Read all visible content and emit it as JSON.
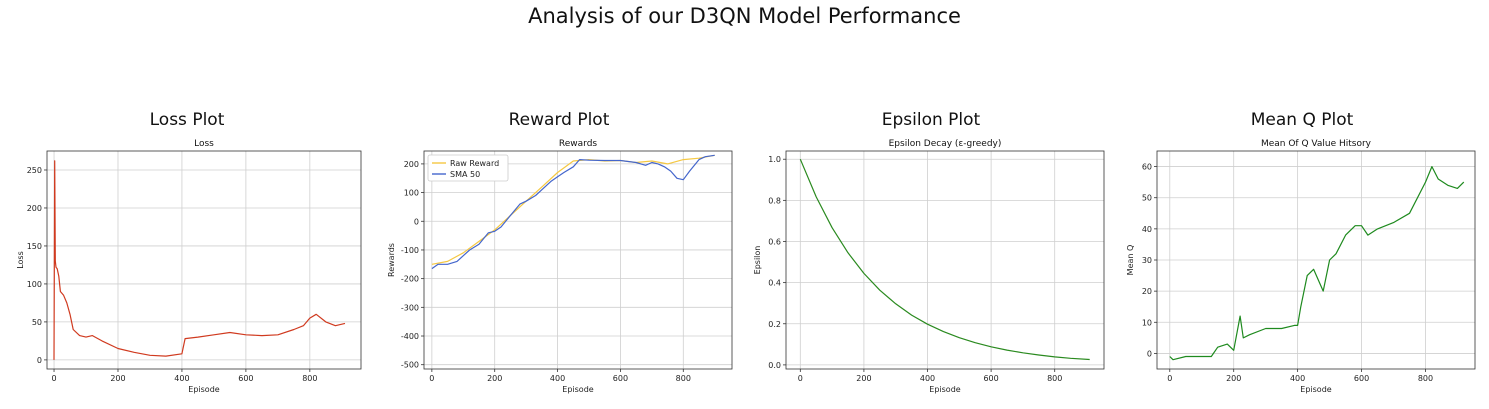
{
  "suptitle": "Analysis of our D3QN Model Performance",
  "panels": [
    {
      "heading": "Loss Plot"
    },
    {
      "heading": "Reward Plot"
    },
    {
      "heading": "Epsilon Plot"
    },
    {
      "heading": "Mean Q Plot"
    }
  ],
  "chart_data": [
    {
      "type": "line",
      "title": "Loss",
      "xlabel": "Episode",
      "ylabel": "Loss",
      "xlim": [
        -22,
        960
      ],
      "ylim": [
        -12,
        275
      ],
      "xticks": [
        0,
        200,
        400,
        600,
        800
      ],
      "yticks": [
        0,
        50,
        100,
        150,
        200,
        250
      ],
      "grid": true,
      "color": "#d03a1f",
      "series": [
        {
          "x": [
            0,
            2,
            4,
            6,
            10,
            15,
            20,
            30,
            40,
            50,
            60,
            80,
            100,
            120,
            150,
            200,
            250,
            300,
            350,
            400,
            410,
            450,
            500,
            550,
            600,
            650,
            700,
            750,
            780,
            800,
            820,
            850,
            880,
            910
          ],
          "y": [
            0,
            262,
            130,
            122,
            120,
            110,
            90,
            85,
            75,
            60,
            40,
            32,
            30,
            32,
            25,
            15,
            10,
            6,
            5,
            8,
            28,
            30,
            33,
            36,
            33,
            32,
            33,
            40,
            45,
            55,
            60,
            50,
            45,
            48
          ]
        }
      ]
    },
    {
      "type": "line",
      "title": "Rewards",
      "xlabel": "Episode",
      "ylabel": "Rewards",
      "xlim": [
        -25,
        955
      ],
      "ylim": [
        -515,
        245
      ],
      "xticks": [
        0,
        200,
        400,
        600,
        800
      ],
      "yticks": [
        -500,
        -400,
        -300,
        -200,
        -100,
        0,
        100,
        200
      ],
      "grid": true,
      "legend": "top-left",
      "series": [
        {
          "name": "Raw Reward",
          "color": "#f5c842",
          "x": [
            0,
            50,
            100,
            150,
            200,
            250,
            300,
            350,
            400,
            450,
            500,
            550,
            600,
            650,
            700,
            750,
            800,
            850,
            900
          ],
          "y": [
            -150,
            -140,
            -110,
            -70,
            -30,
            20,
            70,
            120,
            170,
            210,
            215,
            210,
            212,
            205,
            210,
            200,
            215,
            220,
            230
          ]
        },
        {
          "name": "SMA 50",
          "color": "#4466cc",
          "x": [
            0,
            20,
            50,
            80,
            100,
            120,
            150,
            180,
            200,
            220,
            250,
            280,
            300,
            330,
            350,
            380,
            400,
            420,
            450,
            470,
            500,
            550,
            600,
            650,
            680,
            700,
            720,
            740,
            760,
            780,
            800,
            820,
            850,
            870,
            900
          ],
          "y": [
            -165,
            -150,
            -150,
            -140,
            -120,
            -100,
            -80,
            -40,
            -35,
            -20,
            20,
            60,
            70,
            90,
            110,
            140,
            155,
            170,
            190,
            215,
            213,
            212,
            212,
            205,
            195,
            205,
            200,
            190,
            175,
            150,
            145,
            175,
            215,
            225,
            230
          ]
        }
      ]
    },
    {
      "type": "line",
      "title": "Epsilon Decay (ε-greedy)",
      "xlabel": "Episode",
      "ylabel": "Epsilon",
      "xlim": [
        -45,
        955
      ],
      "ylim": [
        -0.02,
        1.04
      ],
      "xticks": [
        0,
        200,
        400,
        600,
        800
      ],
      "yticks": [
        0.0,
        0.2,
        0.4,
        0.6,
        0.8,
        1.0
      ],
      "grid": true,
      "color": "#2a8a1f",
      "series": [
        {
          "x": [
            0,
            50,
            100,
            150,
            200,
            250,
            300,
            350,
            400,
            450,
            500,
            550,
            600,
            650,
            700,
            750,
            800,
            850,
            910
          ],
          "y": [
            1.0,
            0.817,
            0.667,
            0.545,
            0.445,
            0.363,
            0.297,
            0.242,
            0.198,
            0.162,
            0.132,
            0.108,
            0.088,
            0.072,
            0.059,
            0.048,
            0.039,
            0.032,
            0.026
          ]
        }
      ]
    },
    {
      "type": "line",
      "title": "Mean Of Q Value Hitsory",
      "xlabel": "Episode",
      "ylabel": "Mean Q",
      "xlim": [
        -40,
        955
      ],
      "ylim": [
        -5,
        65
      ],
      "xticks": [
        0,
        200,
        400,
        600,
        800
      ],
      "yticks": [
        0,
        10,
        20,
        30,
        40,
        50,
        60
      ],
      "grid": true,
      "color": "#1e8a1e",
      "series": [
        {
          "x": [
            0,
            10,
            50,
            100,
            130,
            150,
            180,
            200,
            220,
            230,
            250,
            300,
            350,
            390,
            400,
            410,
            430,
            450,
            480,
            500,
            520,
            550,
            580,
            600,
            620,
            650,
            700,
            750,
            800,
            820,
            840,
            870,
            900,
            920
          ],
          "y": [
            -1,
            -2,
            -1,
            -1,
            -1,
            2,
            3,
            1,
            12,
            5,
            6,
            8,
            8,
            9,
            9,
            15,
            25,
            27,
            20,
            30,
            32,
            38,
            41,
            41,
            38,
            40,
            42,
            45,
            55,
            60,
            56,
            54,
            53,
            55
          ]
        }
      ]
    }
  ]
}
